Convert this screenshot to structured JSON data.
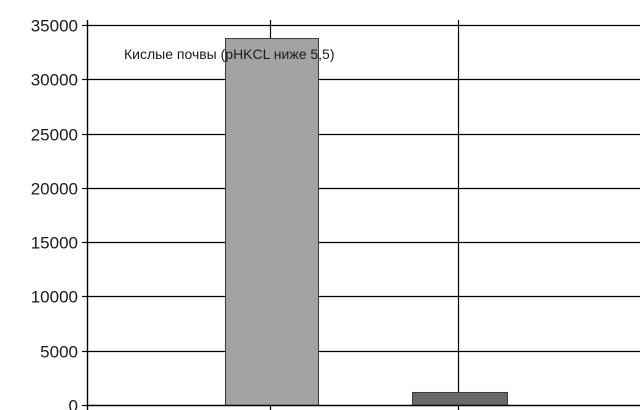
{
  "chart_data": {
    "type": "bar",
    "title": "",
    "xlabel": "",
    "ylabel": "",
    "ylim": [
      0,
      35000
    ],
    "y_ticks": [
      0,
      5000,
      10000,
      15000,
      20000,
      25000,
      30000,
      35000
    ],
    "x_gridline_count": 3,
    "grid": true,
    "annotation": "Кислые почвы (pHKCL ниже 5,5)",
    "bars": [
      {
        "value": 33800,
        "color": "#a3a3a3"
      },
      {
        "value": 1200,
        "color": "#6a6a6a"
      }
    ]
  }
}
